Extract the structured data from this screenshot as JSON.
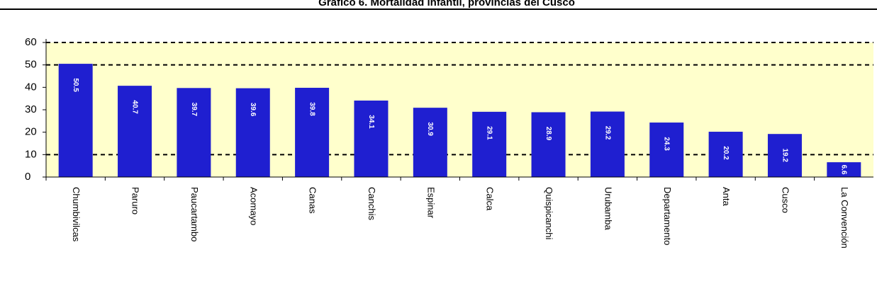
{
  "chart_data": {
    "type": "bar",
    "title": "Gráfico 6. Mortalidad infantil, provincias del Cusco",
    "categories": [
      "Chumbivilcas",
      "Paruro",
      "Paucartambo",
      "Acomayo",
      "Canas",
      "Canchis",
      "Espinar",
      "Calca",
      "Quispicanchi",
      "Urubamba",
      "Departamento",
      "Anta",
      "Cusco",
      "La Convención"
    ],
    "values": [
      50.5,
      40.7,
      39.7,
      39.6,
      39.8,
      34.1,
      30.9,
      29.1,
      28.9,
      29.2,
      24.3,
      20.2,
      19.2,
      6.6
    ],
    "color": "#1f1fd0",
    "background": "#ffffcc",
    "ylim": [
      0,
      60
    ],
    "yticks": [
      0,
      10,
      20,
      30,
      40,
      50,
      60
    ],
    "reference_lines": [
      10,
      50,
      60
    ]
  }
}
